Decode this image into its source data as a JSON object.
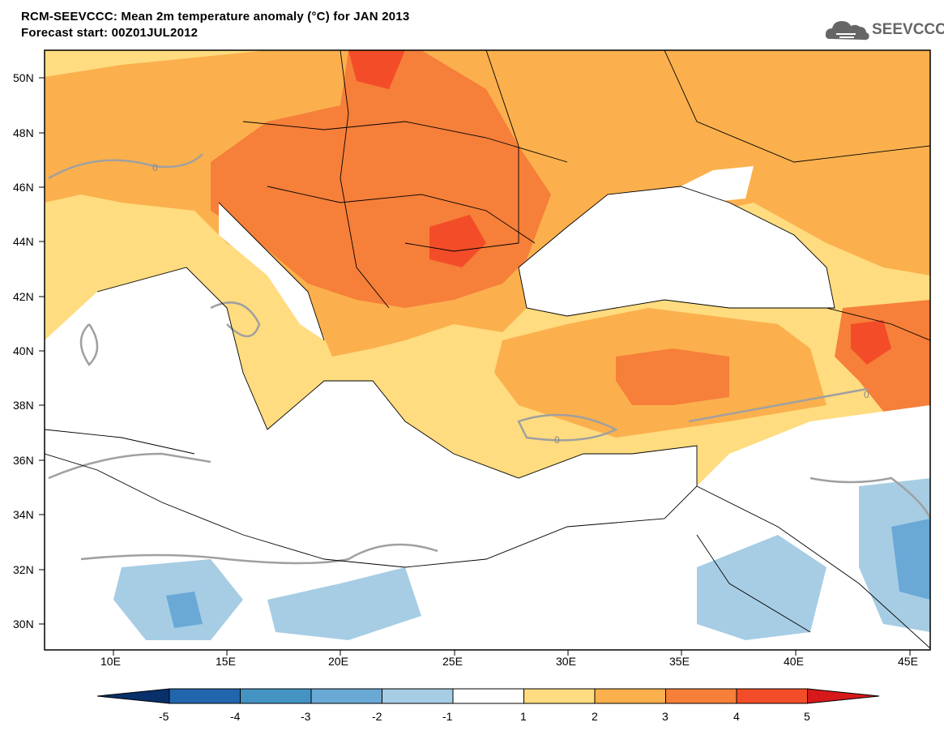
{
  "title": "RCM-SEEVCCC: Mean 2m temperature anomaly (°C) for JAN 2013",
  "subtitle": "Forecast start: 00Z01JUL2012",
  "logo": {
    "text": "SEEVCCC",
    "icon": "cloud-icon"
  },
  "lat_labels": [
    "50N",
    "48N",
    "46N",
    "44N",
    "42N",
    "40N",
    "38N",
    "36N",
    "34N",
    "32N",
    "30N"
  ],
  "lon_labels": [
    "10E",
    "15E",
    "20E",
    "25E",
    "30E",
    "35E",
    "40E",
    "45E"
  ],
  "contour_label": "0",
  "colorbar": {
    "labels": [
      "-5",
      "-4",
      "-3",
      "-2",
      "-1",
      "1",
      "2",
      "3",
      "4",
      "5"
    ],
    "colors": [
      "#08306b",
      "#2166ac",
      "#4393c3",
      "#6aa8d6",
      "#a6cde4",
      "#ffffff",
      "#fedc7f",
      "#fbb04d",
      "#f67f3a",
      "#f24d28",
      "#d7191c"
    ]
  },
  "legend_colors": {
    "c1_2": "#fedc7f",
    "c2_3": "#fbb04d",
    "c3_4": "#f67f3a",
    "c4_5": "#f24d28",
    "cm2_m1": "#a6cde4",
    "cm3_m2": "#6aa8d6",
    "land_line": "#000000",
    "zero_line": "#a0a0a0"
  }
}
